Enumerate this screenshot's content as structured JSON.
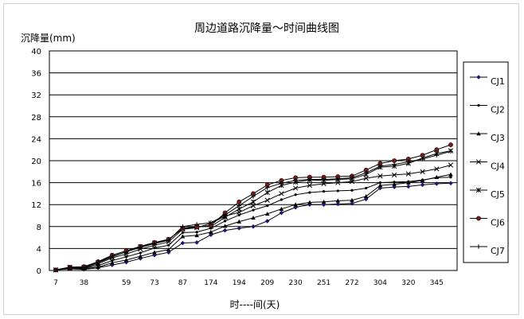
{
  "chart_data": {
    "type": "line",
    "title": "周边道路沉降量～时间曲线图",
    "ylabel": "沉降量(mm)",
    "xlabel": "时----间(天)",
    "ylim": [
      0,
      40
    ],
    "yticks": [
      0,
      4,
      8,
      12,
      16,
      20,
      24,
      28,
      32,
      36,
      40
    ],
    "x_tick_labels": [
      "7",
      "38",
      "59",
      "73",
      "87",
      "174",
      "194",
      "209",
      "230",
      "251",
      "272",
      "304",
      "320",
      "345"
    ],
    "x_tick_label_indices": [
      0,
      2,
      5,
      7,
      9,
      11,
      13,
      15,
      17,
      19,
      21,
      23,
      25,
      27
    ],
    "num_points": 29,
    "grid": "horizontal",
    "legend_position": "right",
    "series": [
      {
        "name": "CJ1",
        "marker": "diamond",
        "values": [
          0.1,
          0.3,
          0.2,
          0.5,
          1.0,
          1.5,
          2.2,
          2.8,
          3.3,
          5.0,
          5.1,
          6.5,
          7.3,
          7.7,
          8.0,
          9.0,
          10.5,
          11.5,
          12.0,
          12.0,
          12.1,
          12.2,
          13.0,
          15.0,
          15.2,
          15.3,
          15.6,
          15.8,
          15.9
        ]
      },
      {
        "name": "CJ2",
        "marker": "dot",
        "values": [
          0.1,
          0.4,
          0.4,
          0.9,
          1.8,
          2.5,
          3.2,
          4.1,
          4.6,
          6.9,
          7.0,
          7.7,
          9.0,
          10.1,
          11.0,
          11.8,
          12.9,
          13.8,
          14.2,
          14.4,
          14.5,
          14.6,
          15.0,
          16.0,
          16.1,
          16.2,
          16.5,
          16.9,
          17.0
        ]
      },
      {
        "name": "CJ3",
        "marker": "triangle",
        "values": [
          0.1,
          0.4,
          0.3,
          0.6,
          1.4,
          1.9,
          2.6,
          3.3,
          3.8,
          6.2,
          6.4,
          7.0,
          8.1,
          8.9,
          9.6,
          10.3,
          11.2,
          12.0,
          12.4,
          12.5,
          12.7,
          12.8,
          13.5,
          15.5,
          15.7,
          16.0,
          16.4,
          17.0,
          17.5
        ]
      },
      {
        "name": "CJ4",
        "marker": "x",
        "values": [
          0.1,
          0.5,
          0.5,
          1.2,
          2.3,
          3.0,
          3.9,
          4.6,
          5.2,
          7.5,
          7.8,
          8.6,
          9.9,
          10.6,
          11.8,
          12.8,
          14.0,
          15.0,
          15.5,
          15.8,
          16.0,
          16.2,
          16.8,
          17.2,
          17.4,
          17.6,
          18.0,
          18.5,
          19.2
        ]
      },
      {
        "name": "CJ5",
        "marker": "star",
        "values": [
          0.1,
          0.6,
          0.6,
          1.4,
          2.5,
          3.4,
          4.3,
          5.0,
          5.6,
          7.7,
          8.0,
          8.0,
          9.7,
          11.2,
          12.5,
          14.2,
          15.5,
          16.1,
          16.5,
          16.4,
          16.6,
          16.7,
          17.5,
          18.8,
          19.0,
          19.5,
          20.5,
          21.3,
          21.8
        ]
      },
      {
        "name": "CJ6",
        "marker": "circle",
        "values": [
          0.1,
          0.6,
          0.7,
          1.6,
          2.8,
          3.6,
          4.4,
          5.1,
          5.7,
          7.6,
          7.9,
          8.2,
          10.5,
          12.5,
          14.0,
          15.6,
          16.4,
          16.9,
          17.0,
          17.0,
          17.1,
          17.2,
          18.3,
          19.5,
          20.0,
          20.3,
          21.0,
          22.0,
          22.9
        ]
      },
      {
        "name": "CJ7",
        "marker": "plus",
        "values": [
          0.1,
          0.6,
          0.6,
          1.5,
          2.6,
          3.4,
          4.2,
          4.9,
          5.5,
          8.0,
          8.4,
          8.7,
          10.1,
          11.8,
          13.5,
          15.1,
          15.9,
          16.4,
          16.6,
          16.6,
          16.7,
          16.9,
          17.8,
          19.0,
          19.3,
          19.8,
          20.3,
          21.0,
          21.7
        ]
      }
    ]
  }
}
